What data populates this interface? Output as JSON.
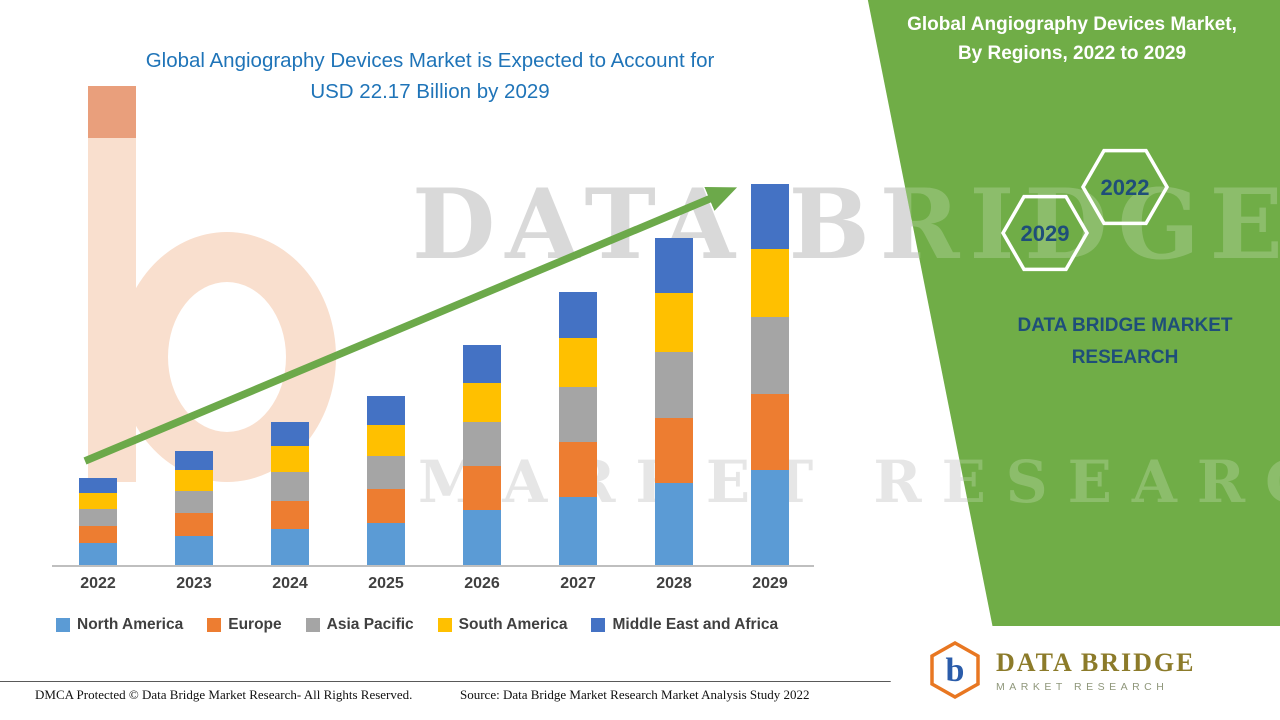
{
  "header": {
    "title_line1": "Global Angiography Devices Market is Expected to Account for",
    "title_line2": "USD 22.17 Billion by 2029"
  },
  "green_panel": {
    "title_line1": "Global Angiography Devices Market,",
    "title_line2": "By Regions, 2022 to 2029",
    "badge_back": "2029",
    "badge_front": "2022",
    "brand_line1": "DATA BRIDGE MARKET",
    "brand_line2": "RESEARCH"
  },
  "watermark": {
    "line1": "DATA BRIDGE",
    "line2": "MARKET RESEARCH"
  },
  "chart_data": {
    "type": "bar",
    "stacked": true,
    "title": "Global Angiography Devices Market is Expected to Account for USD 22.17 Billion by 2029",
    "xlabel": "",
    "ylabel": "",
    "ylim": [
      0,
      24
    ],
    "grid": false,
    "legend_position": "bottom",
    "categories": [
      "2022",
      "2023",
      "2024",
      "2025",
      "2026",
      "2027",
      "2028",
      "2029"
    ],
    "series": [
      {
        "name": "North America",
        "color": "#5B9BD5",
        "values": [
          1.26,
          1.67,
          2.08,
          2.45,
          3.19,
          3.98,
          4.76,
          5.54
        ]
      },
      {
        "name": "Europe",
        "color": "#ED7D31",
        "values": [
          1.01,
          1.33,
          1.66,
          1.96,
          2.55,
          3.18,
          3.81,
          4.43
        ]
      },
      {
        "name": "Asia Pacific",
        "color": "#A5A5A5",
        "values": [
          1.01,
          1.33,
          1.66,
          1.96,
          2.55,
          3.18,
          3.81,
          4.43
        ]
      },
      {
        "name": "South America",
        "color": "#FFC000",
        "values": [
          0.91,
          1.2,
          1.49,
          1.77,
          2.3,
          2.86,
          3.42,
          3.99
        ]
      },
      {
        "name": "Middle East and Africa",
        "color": "#4472C4",
        "values": [
          0.86,
          1.13,
          1.41,
          1.67,
          2.17,
          2.7,
          3.23,
          3.78
        ]
      }
    ],
    "totals": [
      5.05,
      6.66,
      8.3,
      9.81,
      12.76,
      15.9,
      19.03,
      22.17
    ]
  },
  "footer": {
    "dmca": "DMCA Protected © Data Bridge Market Research- All Rights Reserved.",
    "source": "Source: Data Bridge Market Research Market Analysis Study 2022"
  },
  "logo": {
    "title": "DATA BRIDGE",
    "subtitle": "MARKET RESEARCH"
  },
  "colors": {
    "panel_green": "#70AD47",
    "arrow_green": "#6CA94A",
    "title_blue": "#1F74B8",
    "dark_navy": "#1F4E79"
  }
}
